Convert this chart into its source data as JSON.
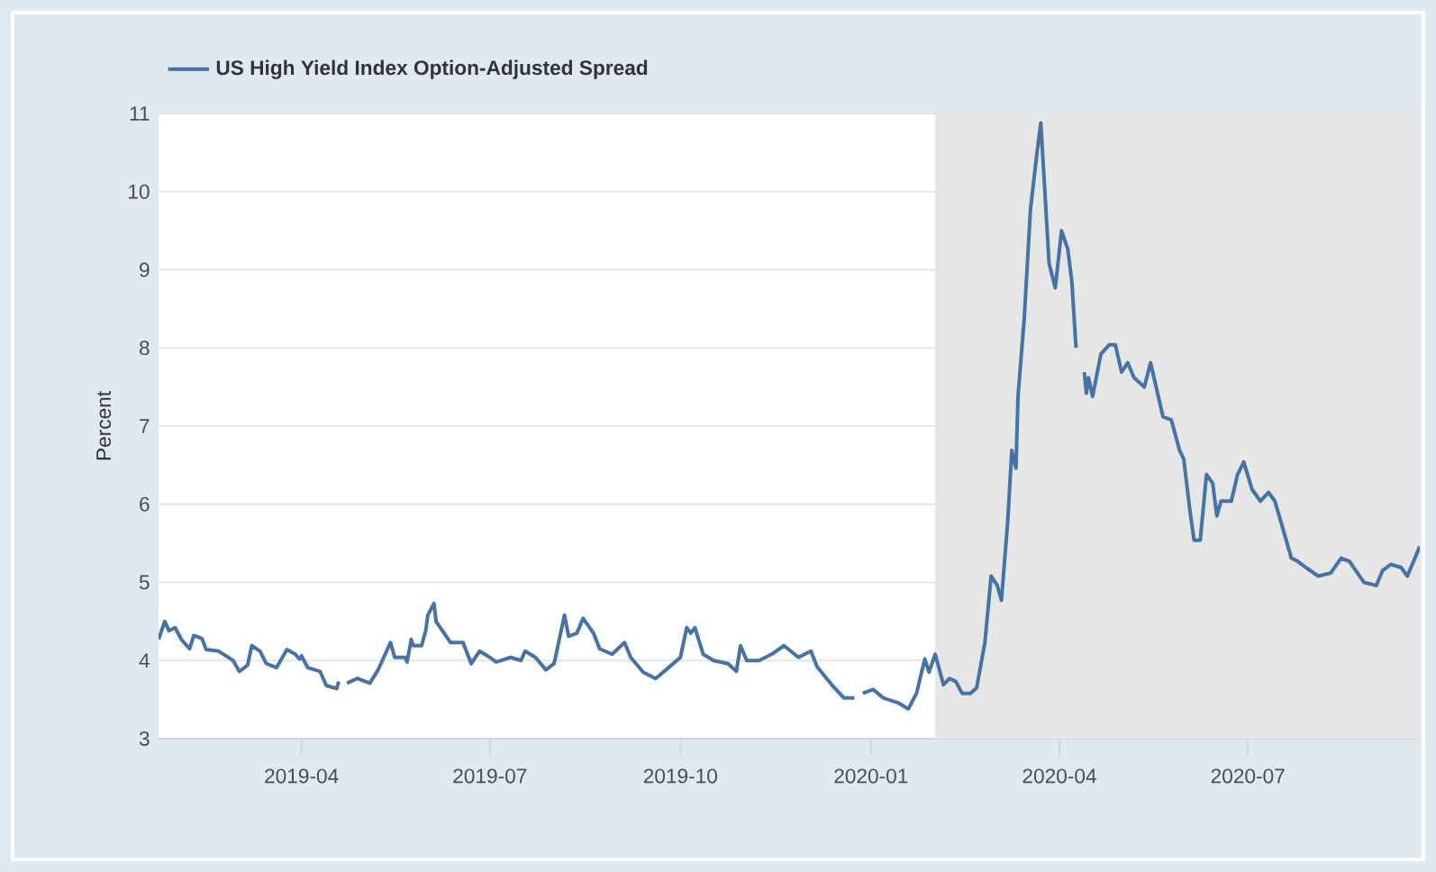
{
  "chart_data": {
    "type": "line",
    "ylabel": "Percent",
    "legend": "top left",
    "grid": "y",
    "marker": "none",
    "line_style": "solid",
    "xlim": [
      "2019-01-22",
      "2020-09-22"
    ],
    "ylim": [
      3,
      11
    ],
    "yticks": [
      3,
      4,
      5,
      6,
      7,
      8,
      9,
      10,
      11
    ],
    "xticks": [
      {
        "value": "2019-04-01",
        "label": "2019-04"
      },
      {
        "value": "2019-07-01",
        "label": "2019-07"
      },
      {
        "value": "2019-10-01",
        "label": "2019-10"
      },
      {
        "value": "2020-01-01",
        "label": "2020-01"
      },
      {
        "value": "2020-04-01",
        "label": "2020-04"
      },
      {
        "value": "2020-07-01",
        "label": "2020-07"
      }
    ],
    "bands": [
      {
        "axis": "x",
        "from": "2020-02-01",
        "to": "2020-09-22",
        "color": "#e6e6e6"
      }
    ],
    "series": [
      {
        "name": "US High Yield Index Option-Adjusted Spread",
        "color": "#4572a7",
        "x": [
          "2019-01-22",
          "2019-01-25",
          "2019-01-27",
          "2019-01-30",
          "2019-02-02",
          "2019-02-06",
          "2019-02-08",
          "2019-02-12",
          "2019-02-14",
          "2019-02-20",
          "2019-02-27",
          "2019-03-02",
          "2019-03-06",
          "2019-03-08",
          "2019-03-12",
          "2019-03-15",
          "2019-03-20",
          "2019-03-25",
          "2019-03-29",
          "2019-03-31",
          "2019-04-01",
          "2019-04-04",
          "2019-04-10",
          "2019-04-13",
          "2019-04-18",
          "2019-04-19",
          "2019-04-21",
          "2019-04-23",
          "2019-04-28",
          "2019-05-04",
          "2019-05-08",
          "2019-05-14",
          "2019-05-16",
          "2019-05-21",
          "2019-05-22",
          "2019-05-24",
          "2019-05-25",
          "2019-05-29",
          "2019-05-31",
          "2019-06-01",
          "2019-06-04",
          "2019-06-05",
          "2019-06-12",
          "2019-06-18",
          "2019-06-22",
          "2019-06-26",
          "2019-07-01",
          "2019-07-04",
          "2019-07-11",
          "2019-07-16",
          "2019-07-18",
          "2019-07-23",
          "2019-07-28",
          "2019-08-01",
          "2019-08-06",
          "2019-08-08",
          "2019-08-12",
          "2019-08-15",
          "2019-08-20",
          "2019-08-23",
          "2019-08-29",
          "2019-09-04",
          "2019-09-07",
          "2019-09-13",
          "2019-09-19",
          "2019-09-24",
          "2019-10-01",
          "2019-10-04",
          "2019-10-06",
          "2019-10-08",
          "2019-10-12",
          "2019-10-17",
          "2019-10-24",
          "2019-10-28",
          "2019-10-30",
          "2019-11-02",
          "2019-11-08",
          "2019-11-14",
          "2019-11-20",
          "2019-11-27",
          "2019-12-03",
          "2019-12-06",
          "2019-12-13",
          "2019-12-19",
          "2019-12-24",
          "2019-12-26",
          "2019-12-28",
          "2020-01-02",
          "2020-01-07",
          "2020-01-14",
          "2020-01-19",
          "2020-01-23",
          "2020-01-27",
          "2020-01-29",
          "2020-02-01",
          "2020-02-05",
          "2020-02-08",
          "2020-02-11",
          "2020-02-14",
          "2020-02-18",
          "2020-02-21",
          "2020-02-25",
          "2020-02-28",
          "2020-03-02",
          "2020-03-04",
          "2020-03-07",
          "2020-03-09",
          "2020-03-11",
          "2020-03-12",
          "2020-03-15",
          "2020-03-18",
          "2020-03-21",
          "2020-03-23",
          "2020-03-27",
          "2020-03-30",
          "2020-04-02",
          "2020-04-05",
          "2020-04-07",
          "2020-04-09",
          "2020-04-11",
          "2020-04-13",
          "2020-04-14",
          "2020-04-15",
          "2020-04-17",
          "2020-04-21",
          "2020-04-25",
          "2020-04-28",
          "2020-05-01",
          "2020-05-04",
          "2020-05-07",
          "2020-05-12",
          "2020-05-15",
          "2020-05-21",
          "2020-05-25",
          "2020-05-29",
          "2020-05-31",
          "2020-06-03",
          "2020-06-05",
          "2020-06-08",
          "2020-06-11",
          "2020-06-14",
          "2020-06-16",
          "2020-06-18",
          "2020-06-23",
          "2020-06-26",
          "2020-06-29",
          "2020-07-03",
          "2020-07-07",
          "2020-07-11",
          "2020-07-14",
          "2020-07-17",
          "2020-07-22",
          "2020-07-25",
          "2020-07-29",
          "2020-08-04",
          "2020-08-10",
          "2020-08-15",
          "2020-08-19",
          "2020-08-26",
          "2020-09-01",
          "2020-09-04",
          "2020-09-08",
          "2020-09-13",
          "2020-09-16",
          "2020-09-22"
        ],
        "values": [
          4.27,
          4.5,
          4.38,
          4.42,
          4.27,
          4.15,
          4.32,
          4.28,
          4.14,
          4.12,
          4.0,
          3.86,
          3.94,
          4.19,
          4.12,
          3.96,
          3.91,
          4.14,
          4.08,
          4.02,
          4.06,
          3.91,
          3.86,
          3.68,
          3.64,
          3.73,
          null,
          3.71,
          3.77,
          3.71,
          3.88,
          4.23,
          4.04,
          4.04,
          3.98,
          4.27,
          4.19,
          4.19,
          4.38,
          4.58,
          4.73,
          4.5,
          4.23,
          4.23,
          3.96,
          4.12,
          4.04,
          3.98,
          4.04,
          4.0,
          4.12,
          4.04,
          3.88,
          3.96,
          4.58,
          4.31,
          4.35,
          4.54,
          4.35,
          4.15,
          4.08,
          4.23,
          4.04,
          3.85,
          3.77,
          3.88,
          4.04,
          4.42,
          4.35,
          4.42,
          4.08,
          4.0,
          3.96,
          3.86,
          4.19,
          4.0,
          4.0,
          4.08,
          4.19,
          4.04,
          4.12,
          3.92,
          3.69,
          3.52,
          3.52,
          null,
          3.58,
          3.63,
          3.52,
          3.46,
          3.38,
          3.58,
          4.02,
          3.85,
          4.08,
          3.69,
          3.77,
          3.73,
          3.58,
          3.58,
          3.65,
          4.23,
          5.08,
          4.96,
          4.77,
          5.77,
          6.69,
          6.46,
          7.38,
          8.38,
          9.77,
          10.46,
          10.88,
          9.08,
          8.77,
          9.5,
          9.27,
          8.85,
          8.0,
          null,
          7.69,
          7.42,
          7.62,
          7.38,
          7.92,
          8.04,
          8.04,
          7.69,
          7.81,
          7.62,
          7.5,
          7.81,
          7.12,
          7.08,
          6.69,
          6.58,
          5.92,
          5.54,
          5.54,
          6.38,
          6.27,
          5.85,
          6.04,
          6.04,
          6.38,
          6.54,
          6.19,
          6.04,
          6.15,
          6.04,
          5.77,
          5.31,
          5.27,
          5.19,
          5.08,
          5.12,
          5.31,
          5.27,
          5.0,
          4.96,
          5.15,
          5.23,
          5.19,
          5.08,
          5.46
        ]
      }
    ]
  }
}
